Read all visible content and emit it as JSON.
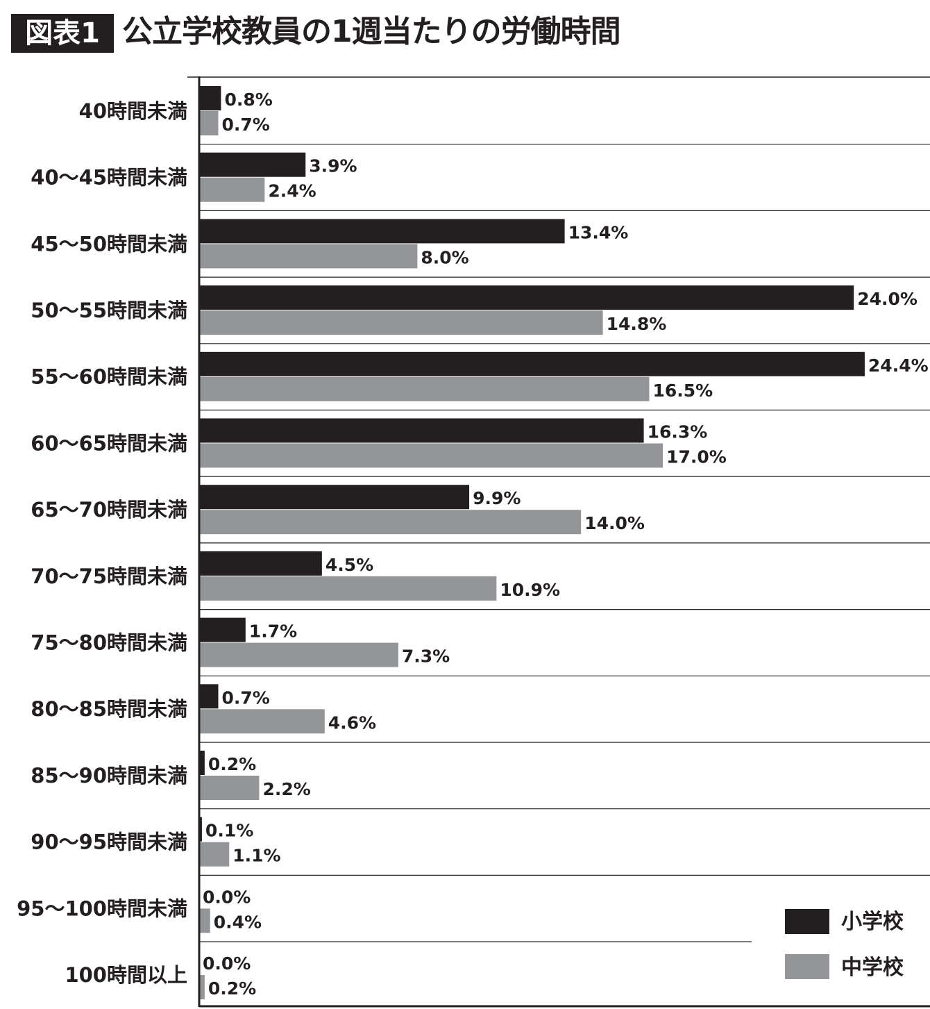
{
  "title": {
    "badge": "図表1",
    "text": "公立学校教員の1週当たりの労働時間"
  },
  "colors": {
    "小学校": "#231f20",
    "中学校": "#939598"
  },
  "chart_data": {
    "type": "bar",
    "orientation": "horizontal",
    "title": "公立学校教員の1週当たりの労働時間",
    "categories": [
      "40時間未満",
      "40〜45時間未満",
      "45〜50時間未満",
      "50〜55時間未満",
      "55〜60時間未満",
      "60〜65時間未満",
      "65〜70時間未満",
      "70〜75時間未満",
      "75〜80時間未満",
      "80〜85時間未満",
      "85〜90時間未満",
      "90〜95時間未満",
      "95〜100時間未満",
      "100時間以上"
    ],
    "series": [
      {
        "name": "小学校",
        "values": [
          0.8,
          3.9,
          13.4,
          24.0,
          24.4,
          16.3,
          9.9,
          4.5,
          1.7,
          0.7,
          0.2,
          0.1,
          0.0,
          0.0
        ]
      },
      {
        "name": "中学校",
        "values": [
          0.7,
          2.4,
          8.0,
          14.8,
          16.5,
          17.0,
          14.0,
          10.9,
          7.3,
          4.6,
          2.2,
          1.1,
          0.4,
          0.2
        ]
      }
    ],
    "value_format": "%",
    "xlim": [
      0,
      25
    ],
    "grid": "row separators",
    "legend": "bottom-right"
  }
}
